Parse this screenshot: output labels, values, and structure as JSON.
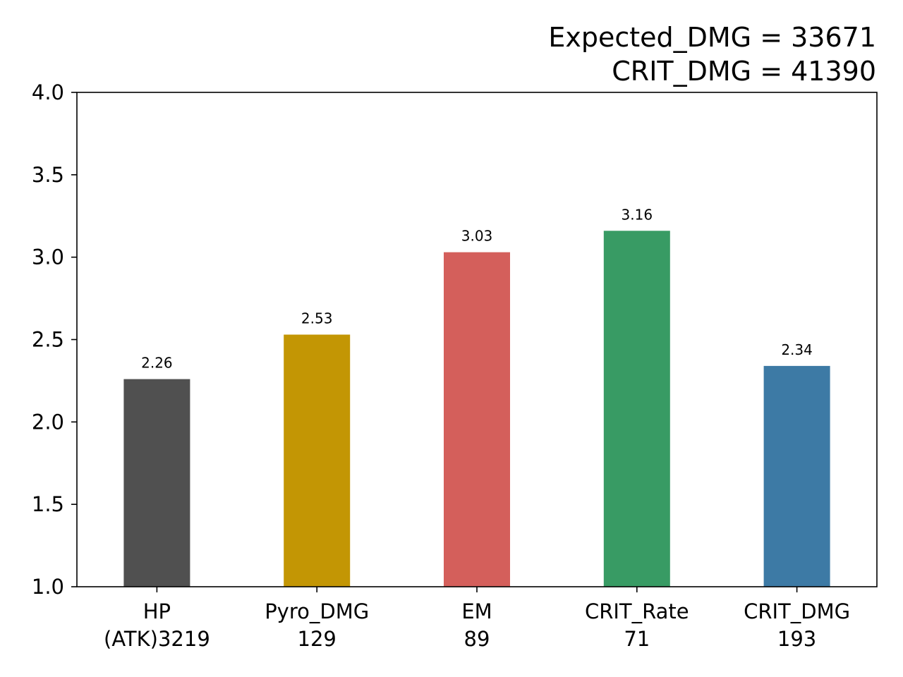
{
  "chart_data": {
    "type": "bar",
    "title_lines": [
      "Expected_DMG = 33671",
      "CRIT_DMG = 41390"
    ],
    "categories": [
      {
        "name": "HP",
        "sub": "(ATK)3219"
      },
      {
        "name": "Pyro_DMG",
        "sub": "129"
      },
      {
        "name": "EM",
        "sub": "89"
      },
      {
        "name": "CRIT_Rate",
        "sub": "71"
      },
      {
        "name": "CRIT_DMG",
        "sub": "193"
      }
    ],
    "values": [
      2.26,
      2.53,
      3.03,
      3.16,
      2.34
    ],
    "value_labels": [
      "2.26",
      "2.53",
      "3.03",
      "3.16",
      "2.34"
    ],
    "colors": [
      "#505050",
      "#c39604",
      "#d45f5b",
      "#389b64",
      "#3d7aa5"
    ],
    "ylim": [
      1.0,
      4.0
    ],
    "yticks": [
      1.0,
      1.5,
      2.0,
      2.5,
      3.0,
      3.5,
      4.0
    ],
    "ytick_labels": [
      "1.0",
      "1.5",
      "2.0",
      "2.5",
      "3.0",
      "3.5",
      "4.0"
    ],
    "grid": false,
    "xlabel": "",
    "ylabel": ""
  }
}
